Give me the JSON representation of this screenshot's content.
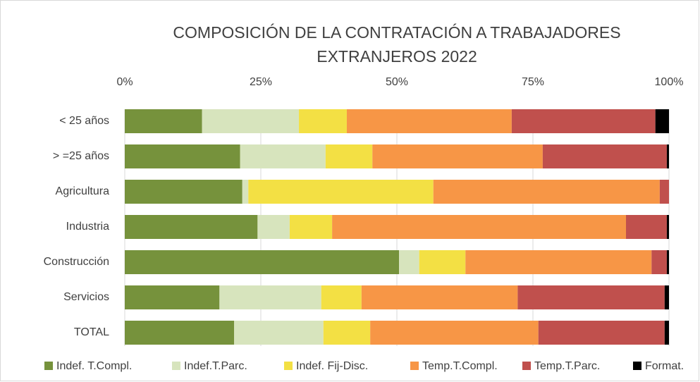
{
  "chart_data": {
    "type": "stacked-bar-horizontal",
    "title": [
      "COMPOSICIÓN DE LA CONTRATACIÓN A TRABAJADORES",
      "EXTRANJEROS 2022"
    ],
    "categories": [
      "< 25 años",
      "> =25 años",
      "Agricultura",
      "Industria",
      "Construcción",
      "Servicios",
      "TOTAL"
    ],
    "series": [
      {
        "name": "Indef. T.Compl.",
        "color": "#76923c",
        "values": [
          14.2,
          21.2,
          21.6,
          24.4,
          50.4,
          17.4,
          20.1
        ]
      },
      {
        "name": "Indef.T.Parc.",
        "color": "#d7e4bd",
        "values": [
          17.8,
          15.7,
          1.1,
          5.9,
          3.7,
          18.7,
          16.4
        ]
      },
      {
        "name": "Indef. Fij-Disc.",
        "color": "#f3e044",
        "values": [
          8.8,
          8.6,
          34.0,
          7.8,
          8.5,
          7.4,
          8.6
        ]
      },
      {
        "name": "Temp.T.Compl.",
        "color": "#f79646",
        "values": [
          30.3,
          31.3,
          41.6,
          54.0,
          34.2,
          28.7,
          30.9
        ]
      },
      {
        "name": "Temp.T.Parc.",
        "color": "#c0504d",
        "values": [
          26.4,
          22.8,
          1.7,
          7.5,
          2.8,
          27.0,
          23.2
        ]
      },
      {
        "name": "Format.",
        "color": "#000000",
        "values": [
          2.5,
          0.4,
          0,
          0.4,
          0.4,
          0.8,
          0.8
        ]
      }
    ],
    "xlim": [
      0,
      100
    ],
    "xticks": [
      {
        "value": 0,
        "label": "0%"
      },
      {
        "value": 25,
        "label": "25%"
      },
      {
        "value": 50,
        "label": "50%"
      },
      {
        "value": 75,
        "label": "75%"
      },
      {
        "value": 100,
        "label": "100%"
      }
    ],
    "grid": true,
    "legend": "bottom"
  }
}
